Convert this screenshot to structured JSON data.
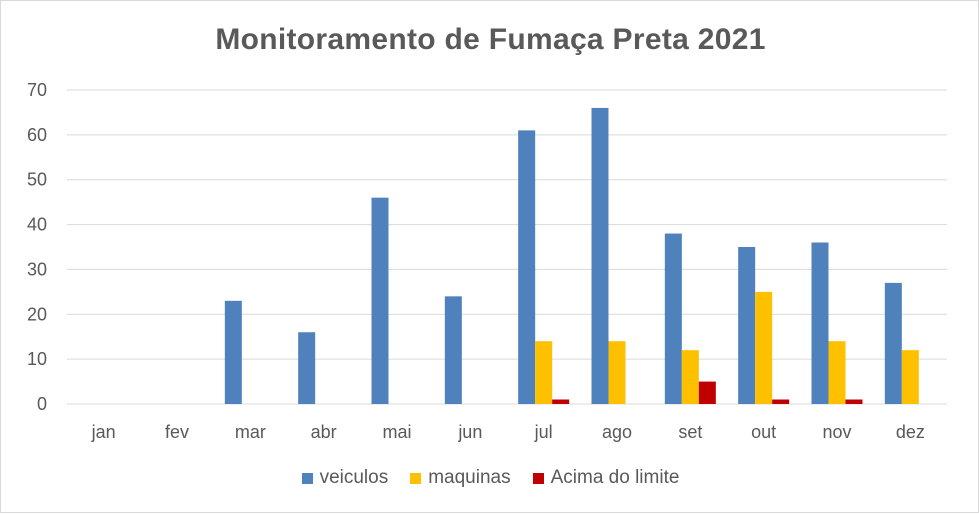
{
  "chart_data": {
    "type": "bar",
    "title": "Monitoramento de Fumaça Preta 2021",
    "categories": [
      "jan",
      "fev",
      "mar",
      "abr",
      "mai",
      "jun",
      "jul",
      "ago",
      "set",
      "out",
      "nov",
      "dez"
    ],
    "series": [
      {
        "name": "veiculos",
        "color": "#4f81bd",
        "values": [
          0,
          0,
          23,
          16,
          46,
          24,
          61,
          66,
          38,
          35,
          36,
          27
        ]
      },
      {
        "name": "maquinas",
        "color": "#ffc000",
        "values": [
          0,
          0,
          0,
          0,
          0,
          0,
          14,
          14,
          12,
          25,
          14,
          12
        ]
      },
      {
        "name": "Acima do limite",
        "color": "#c00000",
        "values": [
          0,
          0,
          0,
          0,
          0,
          0,
          1,
          0,
          5,
          1,
          1,
          0
        ]
      }
    ],
    "ylim": [
      0,
      70
    ],
    "yticks": [
      0,
      10,
      20,
      30,
      40,
      50,
      60,
      70
    ],
    "grid": true,
    "legend_position": "bottom"
  }
}
